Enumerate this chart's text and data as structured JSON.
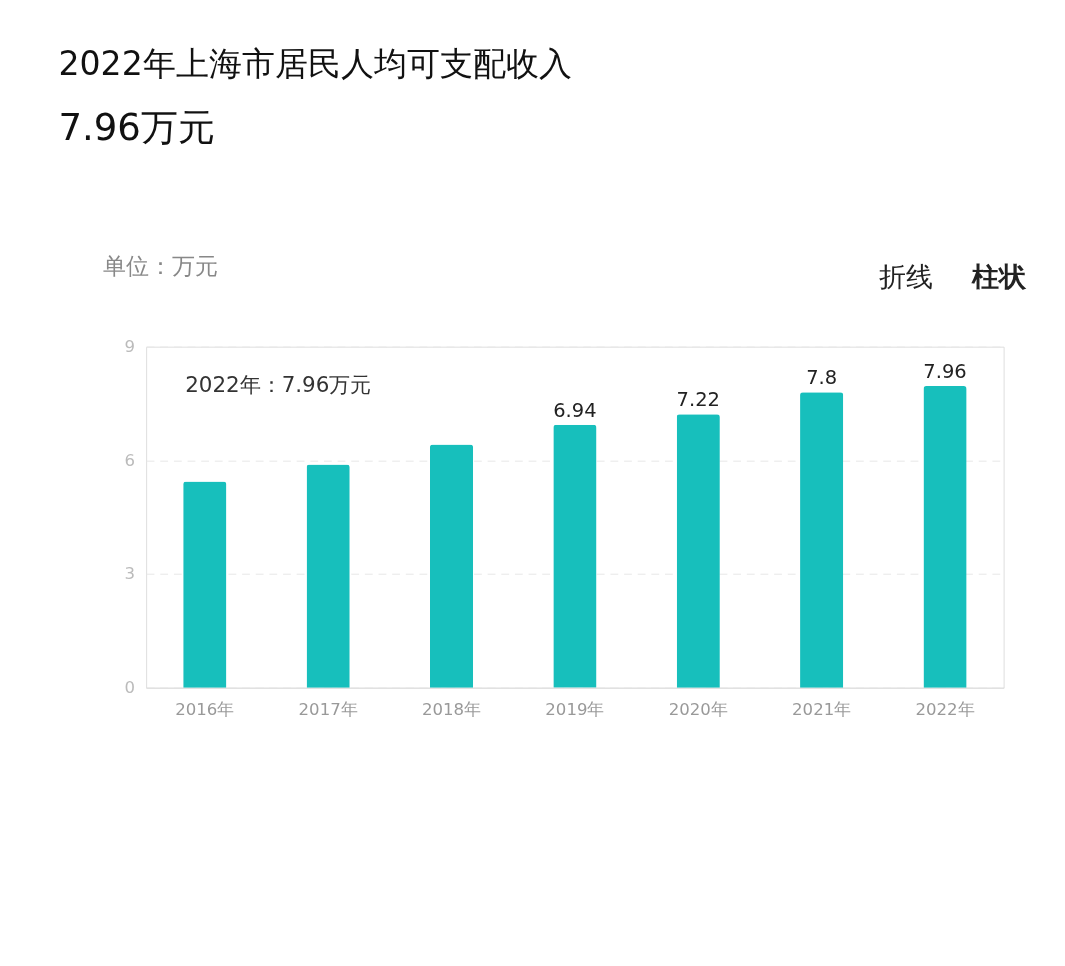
{
  "chart_data": {
    "type": "bar",
    "title": "2022年上海市居民人均可支配收入",
    "subtitle": "7.96万元",
    "ylabel": "单位：万元",
    "categories": [
      "2016年",
      "2017年",
      "2018年",
      "2019年",
      "2020年",
      "2021年",
      "2022年"
    ],
    "values": [
      5.44,
      5.89,
      6.42,
      6.94,
      7.22,
      7.8,
      7.96
    ],
    "value_labels": [
      null,
      null,
      null,
      "6.94",
      "7.22",
      "7.8",
      "7.96"
    ],
    "color": "#17bfbc",
    "ylim": [
      0,
      9
    ],
    "yticks": [
      0,
      3,
      6,
      9
    ],
    "grid": "y",
    "annotations": [
      "2022年：7.96万元",
      "折线",
      "柱状"
    ]
  }
}
